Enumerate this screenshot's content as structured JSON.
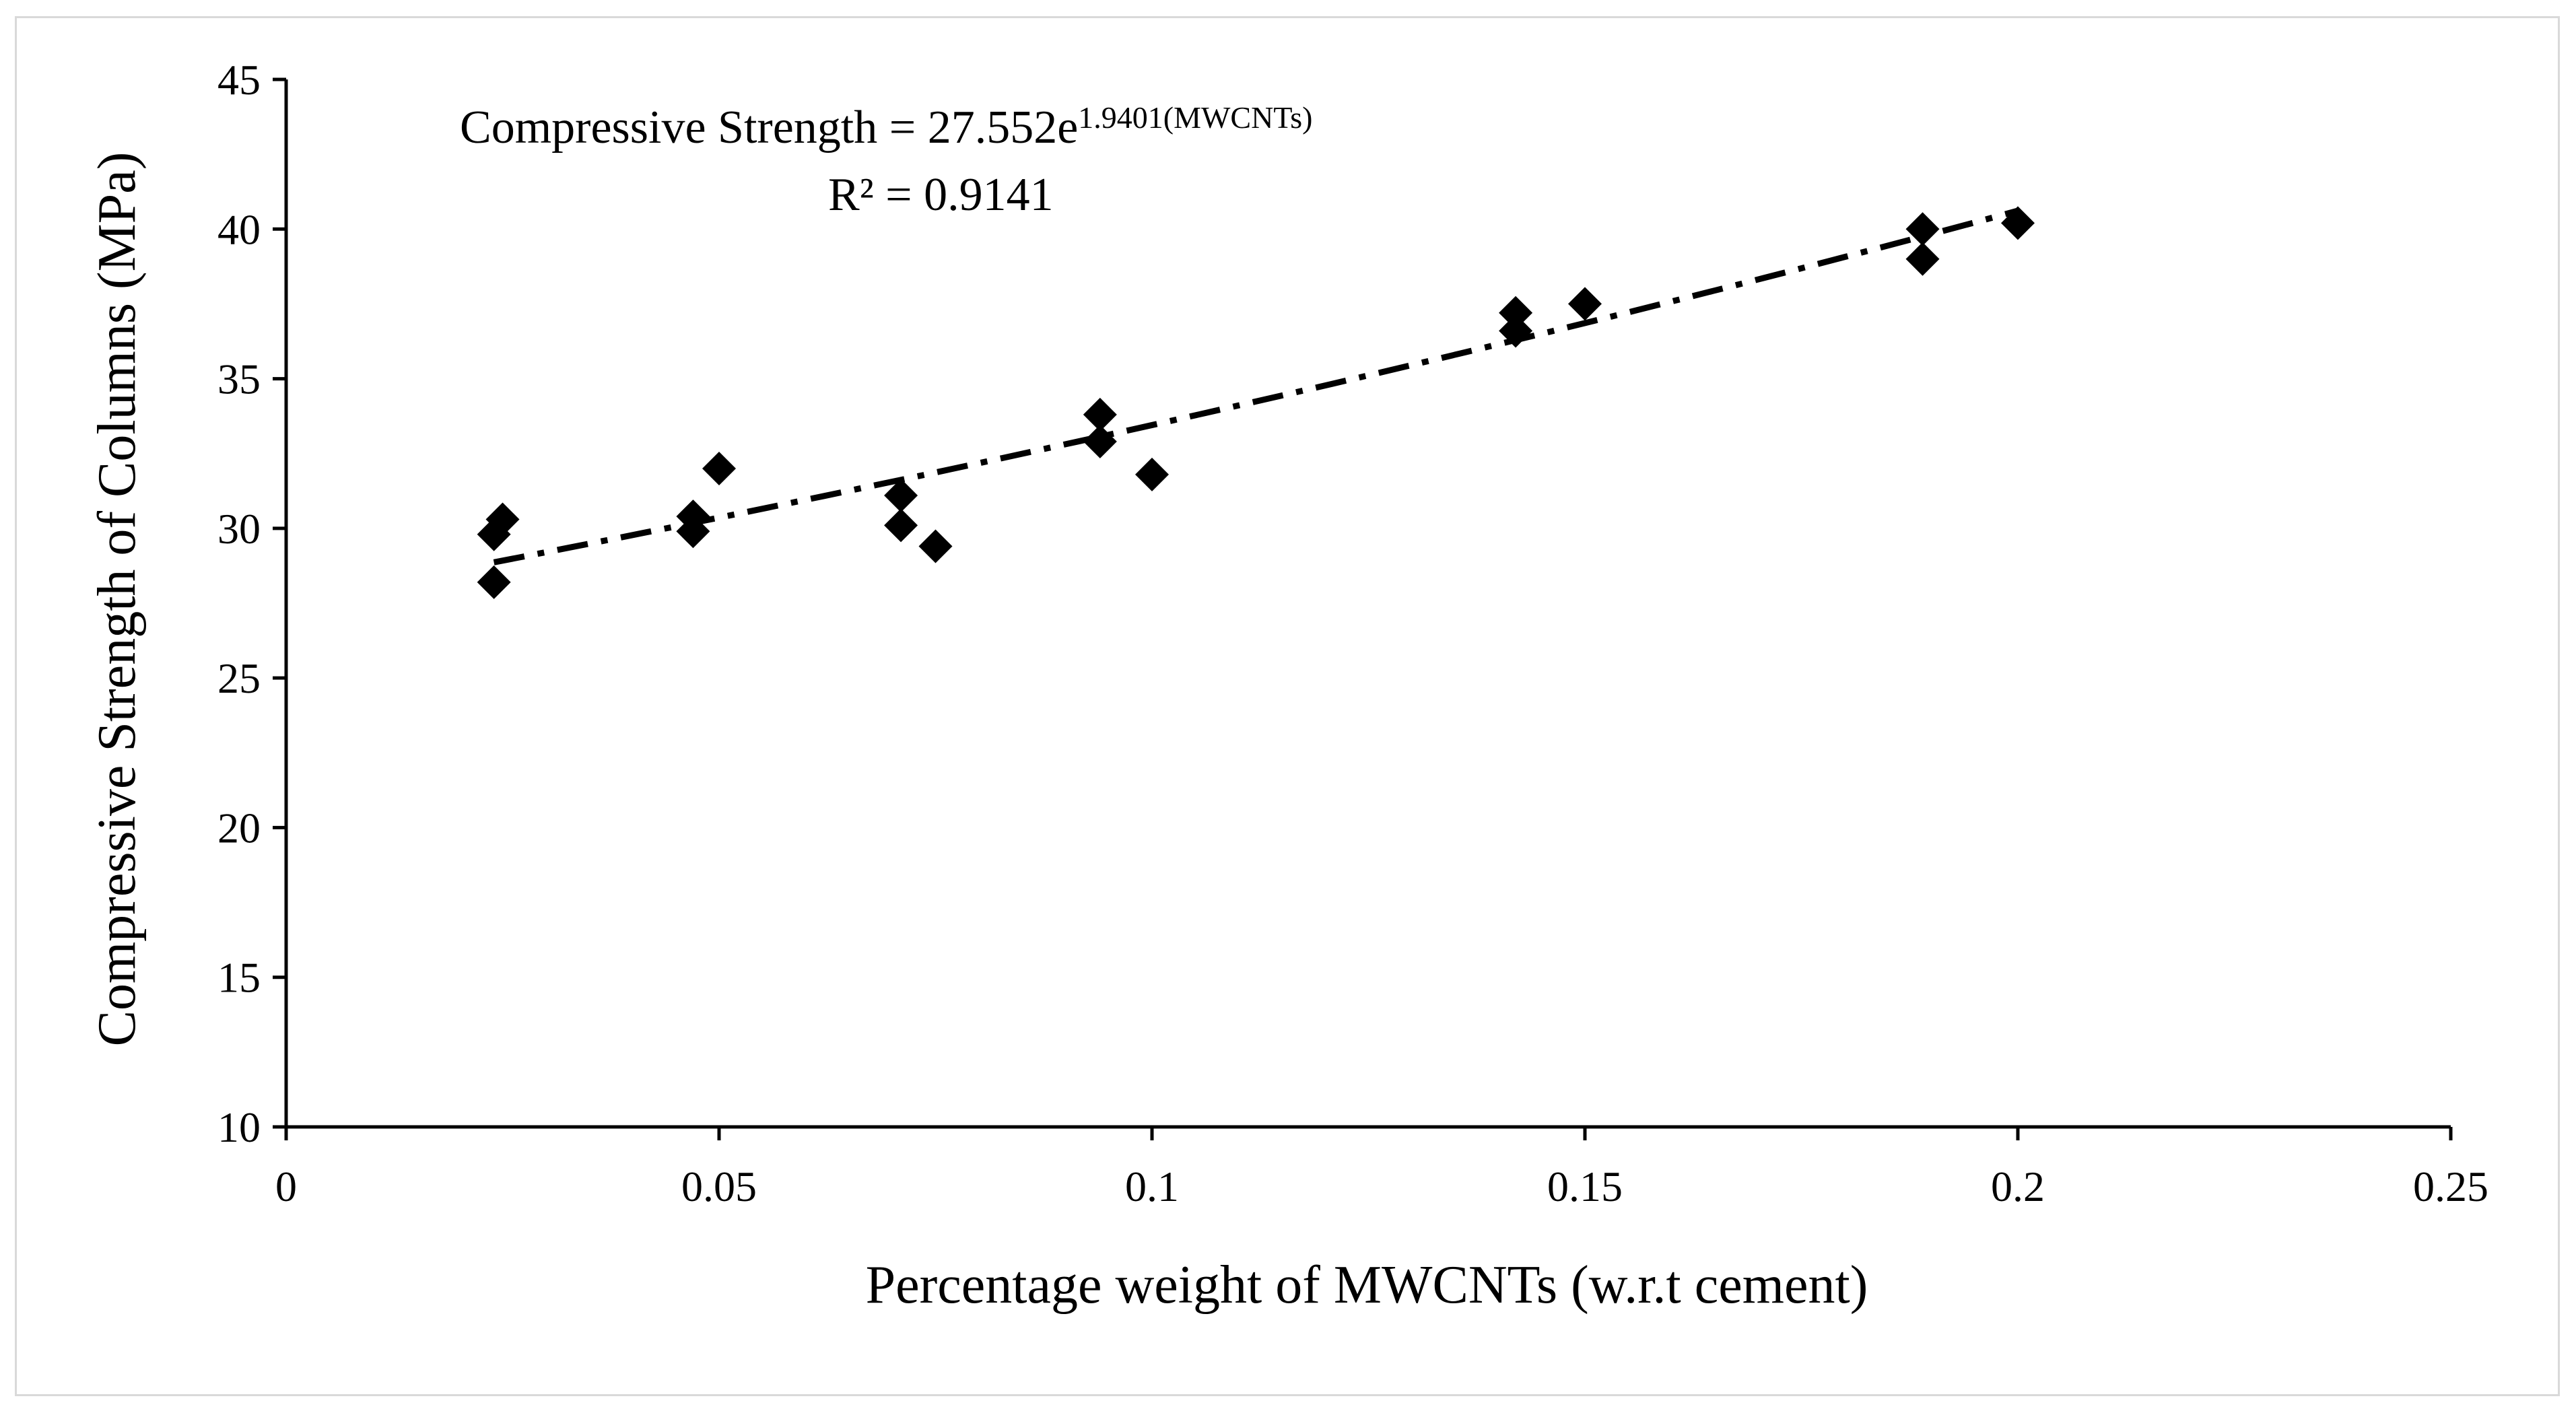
{
  "chart_data": {
    "type": "scatter",
    "xlabel": "Percentage weight of MWCNTs (w.r.t cement)",
    "ylabel": "Compressive Strength of Columns (MPa)",
    "xlim": [
      0,
      0.25
    ],
    "ylim": [
      10,
      45
    ],
    "x_ticks": [
      "0",
      "0.05",
      "0.1",
      "0.15",
      "0.2",
      "0.25"
    ],
    "y_ticks": [
      "10",
      "15",
      "20",
      "25",
      "30",
      "35",
      "40",
      "45"
    ],
    "grid": false,
    "marker": "diamond",
    "marker_color": "#000000",
    "series": [
      {
        "points": [
          {
            "x": 0.024,
            "y": 28.2
          },
          {
            "x": 0.024,
            "y": 29.8
          },
          {
            "x": 0.025,
            "y": 30.3
          },
          {
            "x": 0.047,
            "y": 29.9
          },
          {
            "x": 0.047,
            "y": 30.4
          },
          {
            "x": 0.05,
            "y": 32.0
          },
          {
            "x": 0.071,
            "y": 30.1
          },
          {
            "x": 0.071,
            "y": 31.1
          },
          {
            "x": 0.075,
            "y": 29.4
          },
          {
            "x": 0.094,
            "y": 32.9
          },
          {
            "x": 0.094,
            "y": 33.8
          },
          {
            "x": 0.1,
            "y": 31.8
          },
          {
            "x": 0.142,
            "y": 37.2
          },
          {
            "x": 0.142,
            "y": 36.6
          },
          {
            "x": 0.15,
            "y": 37.5
          },
          {
            "x": 0.189,
            "y": 40.0
          },
          {
            "x": 0.189,
            "y": 39.0
          },
          {
            "x": 0.2,
            "y": 40.2
          }
        ]
      }
    ],
    "trendline": {
      "type": "exponential",
      "a": 27.552,
      "b": 1.9401,
      "x_range": [
        0.024,
        0.2
      ],
      "style": "dash-dot",
      "color": "#000000"
    },
    "annotations": {
      "equation_main": "Compressive Strength = 27.552e",
      "equation_exponent": "1.9401(MWCNTs)",
      "r_squared": "R² = 0.9141"
    }
  }
}
